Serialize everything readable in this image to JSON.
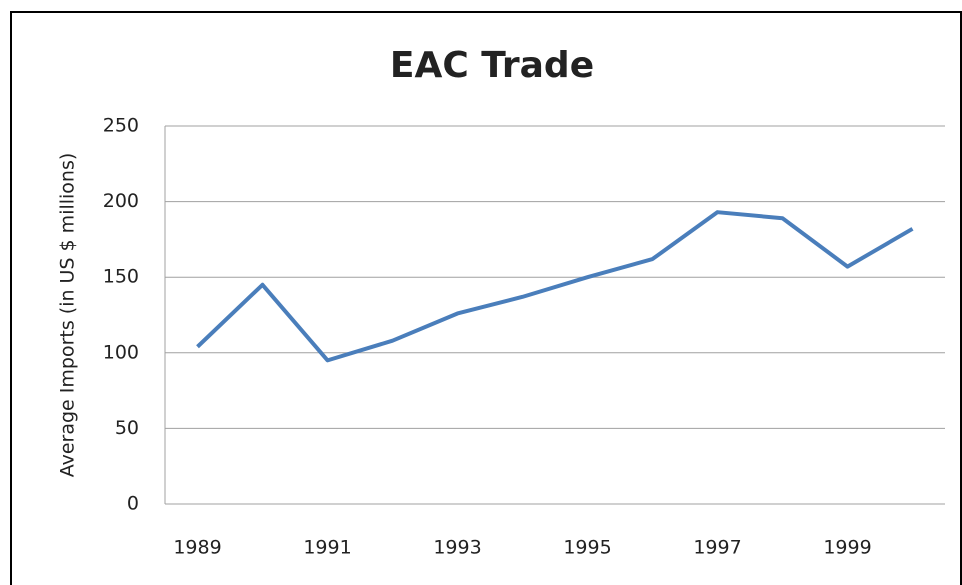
{
  "chart_data": {
    "type": "line",
    "title": "EAC Trade",
    "y_label": "Average Imports (in US $ millions)",
    "categories": [
      "1989",
      null,
      "1991",
      null,
      "1993",
      null,
      "1995",
      null,
      "1997",
      null,
      "1999",
      null
    ],
    "values": [
      104,
      145,
      95,
      108,
      126,
      137,
      150,
      162,
      193,
      189,
      157,
      182
    ],
    "color": "#4a7ebb",
    "ylim": [
      0,
      250
    ],
    "yticks": [
      0,
      50,
      100,
      150,
      200,
      250
    ],
    "grid": true
  }
}
